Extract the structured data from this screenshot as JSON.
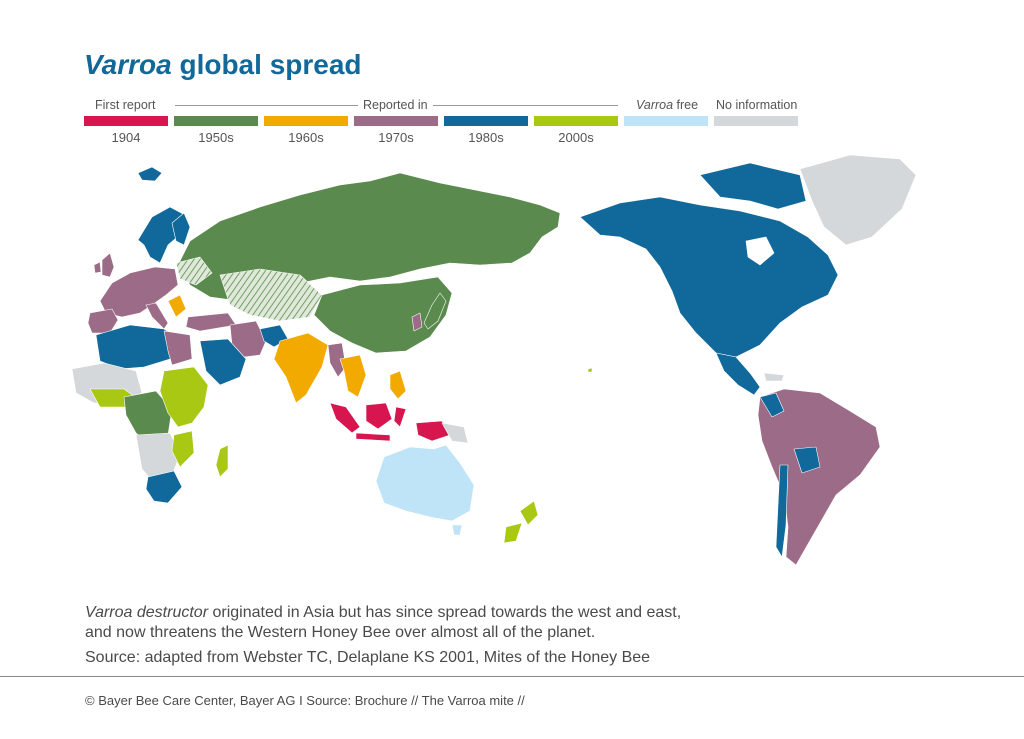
{
  "title": {
    "italic": "Varroa",
    "rest": " global spread"
  },
  "legend": {
    "first_report_label": "First report",
    "reported_in_label": "Reported in",
    "varroa_free_italic": "Varroa",
    "varroa_free_rest": " free",
    "no_info_label": "No information",
    "items": [
      {
        "label": "1904",
        "color": "#d7164f"
      },
      {
        "label": "1950s",
        "color": "#5a8a4d"
      },
      {
        "label": "1960s",
        "color": "#f2a900"
      },
      {
        "label": "1970s",
        "color": "#9b6b87"
      },
      {
        "label": "1980s",
        "color": "#10699a"
      },
      {
        "label": "2000s",
        "color": "#a9c813"
      },
      {
        "label": "",
        "color": "#bfe3f7"
      },
      {
        "label": "",
        "color": "#d5d8db"
      }
    ]
  },
  "caption": {
    "italic": "Varroa destructor",
    "line1_rest": " originated in Asia but has since spread towards the west and east,",
    "line2": "and now threatens the Western Honey Bee over almost all of the planet."
  },
  "source": "Source: adapted from Webster TC, Delaplane KS 2001, Mites of the Honey Bee",
  "footer": "© Bayer Bee Care Center, Bayer AG I Source: Brochure // The Varroa mite //"
}
